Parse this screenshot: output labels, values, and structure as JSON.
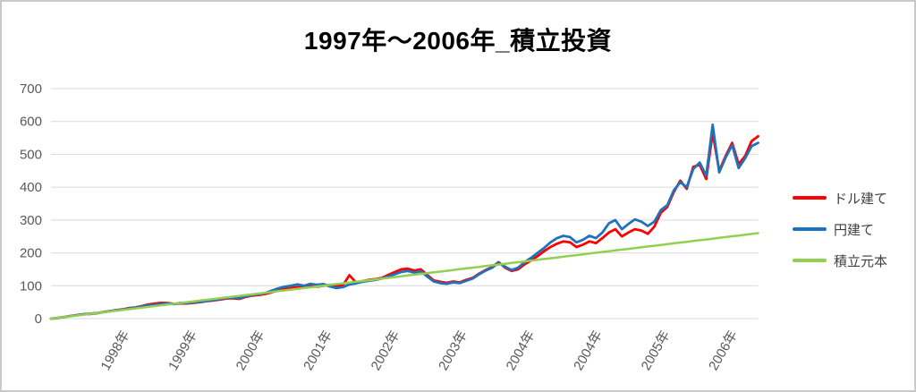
{
  "window": {
    "background": "#ffffff",
    "border_color": "#c9c9c9"
  },
  "chart": {
    "title": "1997年～2006年_積立投資"
  },
  "chart_data": {
    "type": "line",
    "title": "1997年～2006年_積立投資",
    "xlabel": "",
    "ylabel": "",
    "ylim": [
      0,
      700
    ],
    "y_ticks": [
      0,
      100,
      200,
      300,
      400,
      500,
      600,
      700
    ],
    "x_tick_labels": [
      "1998年",
      "1999年",
      "2000年",
      "2001年",
      "2002年",
      "2003年",
      "2004年",
      "2004年",
      "2005年",
      "2006年"
    ],
    "x_unit": "monthly points, Jan 1997 – Feb 2006",
    "grid": "horizontal",
    "legend_position": "right",
    "colors": {
      "grid": "#d9d9d9",
      "tick_text": "#595959"
    },
    "series": [
      {
        "name": "ドル建て",
        "color": "#ff0000",
        "values": [
          0,
          2,
          5,
          8,
          11,
          13,
          14,
          16,
          20,
          22,
          26,
          28,
          32,
          34,
          38,
          43,
          46,
          48,
          47,
          45,
          46,
          46,
          48,
          50,
          53,
          55,
          58,
          61,
          62,
          60,
          66,
          70,
          72,
          75,
          80,
          86,
          90,
          93,
          96,
          94,
          99,
          97,
          100,
          103,
          100,
          102,
          132,
          110,
          114,
          118,
          120,
          124,
          133,
          142,
          150,
          152,
          146,
          150,
          133,
          116,
          112,
          109,
          113,
          110,
          118,
          124,
          137,
          148,
          157,
          172,
          155,
          145,
          150,
          165,
          177,
          190,
          205,
          218,
          228,
          235,
          232,
          218,
          225,
          235,
          230,
          245,
          262,
          272,
          250,
          262,
          272,
          268,
          258,
          280,
          322,
          340,
          385,
          420,
          395,
          462,
          468,
          425,
          565,
          450,
          495,
          535,
          470,
          495,
          540,
          555
        ]
      },
      {
        "name": "円建て",
        "color": "#1f72bc",
        "values": [
          0,
          2,
          5,
          8,
          10,
          13,
          15,
          17,
          19,
          23,
          25,
          27,
          31,
          33,
          37,
          40,
          42,
          44,
          46,
          44,
          48,
          47,
          50,
          51,
          54,
          56,
          60,
          63,
          64,
          62,
          68,
          72,
          74,
          78,
          85,
          92,
          97,
          100,
          104,
          100,
          106,
          103,
          105,
          98,
          93,
          96,
          104,
          107,
          112,
          115,
          118,
          122,
          128,
          135,
          142,
          145,
          140,
          144,
          128,
          113,
          108,
          106,
          110,
          108,
          115,
          122,
          135,
          146,
          155,
          170,
          158,
          148,
          155,
          172,
          185,
          200,
          215,
          232,
          245,
          252,
          248,
          232,
          240,
          252,
          245,
          262,
          290,
          300,
          272,
          288,
          302,
          295,
          282,
          295,
          330,
          345,
          390,
          415,
          400,
          455,
          475,
          435,
          590,
          445,
          490,
          528,
          458,
          488,
          525,
          535
        ]
      },
      {
        "name": "積立元本",
        "color": "#92d050",
        "values": [
          0,
          2.4,
          4.8,
          7.2,
          9.5,
          11.9,
          14.3,
          16.7,
          19.1,
          21.5,
          23.9,
          26.2,
          28.6,
          31.0,
          33.4,
          35.8,
          38.2,
          40.6,
          42.9,
          45.3,
          47.7,
          50.1,
          52.5,
          54.9,
          57.2,
          59.6,
          62.0,
          64.4,
          66.8,
          69.2,
          71.6,
          73.9,
          76.3,
          78.7,
          81.1,
          83.5,
          85.9,
          88.3,
          90.6,
          93.0,
          95.4,
          97.8,
          100.2,
          102.6,
          105.0,
          107.3,
          109.7,
          112.1,
          114.5,
          116.9,
          119.3,
          121.7,
          124.0,
          126.4,
          128.8,
          131.2,
          133.6,
          136.0,
          138.3,
          140.7,
          143.1,
          145.5,
          147.9,
          150.3,
          152.7,
          155.0,
          157.4,
          159.8,
          162.2,
          164.6,
          167.0,
          169.4,
          171.7,
          174.1,
          176.5,
          178.9,
          181.3,
          183.7,
          186.1,
          188.4,
          190.8,
          193.2,
          195.6,
          198.0,
          200.4,
          202.8,
          205.1,
          207.5,
          209.9,
          212.3,
          214.7,
          217.1,
          219.4,
          221.8,
          224.2,
          226.6,
          229.0,
          231.4,
          233.8,
          236.1,
          238.5,
          240.9,
          243.3,
          245.7,
          248.1,
          250.5,
          252.8,
          255.2,
          257.6,
          260.0
        ]
      }
    ]
  }
}
